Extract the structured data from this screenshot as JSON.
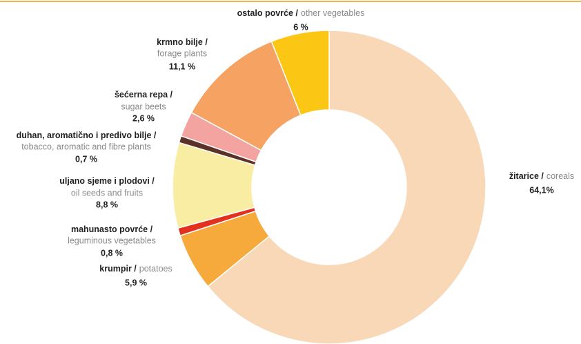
{
  "chart_data": {
    "type": "donut",
    "categories": [
      "žitarice /",
      "krumpir /",
      "mahunasto povrće /",
      "uljano sjeme i plodovi /",
      "duhan, aromatično i predivo bilje /",
      "šećerna repa /",
      "krmno bilje /",
      "ostalo povrće /"
    ],
    "categories_en": [
      "coreals",
      "potatoes",
      "leguminous vegetables",
      "oil seeds and fruits",
      "tobacco, aromatic and fibre plants",
      "sugar beets",
      "forage plants",
      "other vegetables"
    ],
    "values": [
      64.1,
      5.9,
      0.8,
      8.8,
      0.7,
      2.6,
      11.1,
      6
    ],
    "value_labels": [
      "64,1%",
      "5,9 %",
      "0,8 %",
      "8,8 %",
      "0,7 %",
      "2,6 %",
      "11,1 %",
      "6 %"
    ],
    "colors": [
      "#f8d8b6",
      "#f7aa3c",
      "#e2311f",
      "#f8eda2",
      "#5b3128",
      "#f4a4a0",
      "#f5a262",
      "#fcc615"
    ]
  }
}
